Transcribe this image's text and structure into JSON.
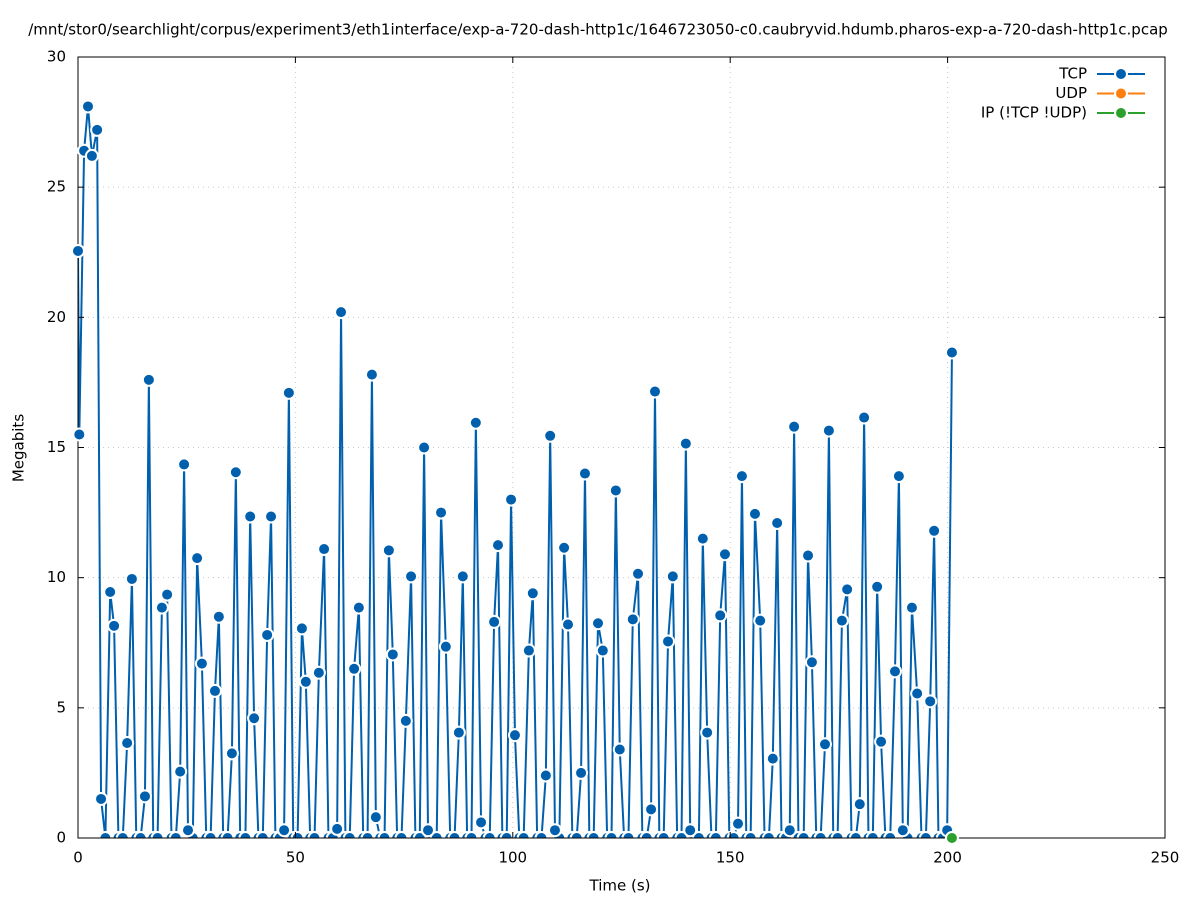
{
  "chart_data": {
    "type": "line",
    "title": "/mnt/stor0/searchlight/corpus/experiment3/eth1interface/exp-a-720-dash-http1c/1646723050-c0.caubryvid.hdumb.pharos-exp-a-720-dash-http1c.pcap",
    "x_label": "Time (s)",
    "y_label": "Megabits",
    "xlim": [
      0,
      250
    ],
    "xticks": [
      0,
      50,
      100,
      150,
      200,
      250
    ],
    "ylim": [
      0,
      30
    ],
    "yticks": [
      0,
      5,
      10,
      15,
      20,
      25,
      30
    ],
    "grid": true,
    "legend": "top-right",
    "series": [
      {
        "name": "TCP",
        "color": "#0060ad",
        "x": [
          0,
          0.3,
          1.4,
          2.3,
          3.2,
          4.4,
          5.3,
          6.3,
          7.4,
          8.3,
          9.3,
          10.3,
          11.3,
          12.4,
          13.4,
          14.4,
          15.4,
          16.3,
          17.3,
          18.3,
          19.3,
          20.5,
          21.5,
          22.5,
          23.5,
          24.4,
          25.3,
          26.4,
          27.4,
          28.5,
          29.5,
          30.5,
          31.5,
          32.4,
          33.4,
          34.4,
          35.4,
          36.3,
          37.3,
          38.5,
          39.6,
          40.5,
          41.5,
          42.5,
          43.5,
          44.4,
          45.4,
          46.4,
          47.4,
          48.5,
          49.5,
          50.5,
          51.5,
          52.4,
          53.4,
          54.4,
          55.4,
          56.6,
          57.6,
          58.6,
          59.6,
          60.5,
          61.5,
          62.5,
          63.5,
          64.6,
          65.6,
          66.6,
          67.6,
          68.5,
          69.5,
          70.5,
          71.5,
          72.4,
          73.4,
          74.4,
          75.4,
          76.6,
          77.6,
          78.6,
          79.6,
          80.5,
          81.5,
          82.5,
          83.5,
          84.6,
          85.6,
          86.6,
          87.6,
          88.5,
          89.5,
          90.5,
          91.5,
          92.7,
          93.7,
          94.7,
          95.7,
          96.6,
          97.6,
          98.6,
          99.6,
          100.5,
          101.5,
          102.5,
          103.7,
          104.6,
          105.6,
          106.6,
          107.6,
          108.6,
          109.7,
          110.7,
          111.8,
          112.7,
          113.7,
          114.7,
          115.7,
          116.6,
          117.6,
          118.6,
          119.6,
          120.7,
          121.7,
          122.7,
          123.7,
          124.6,
          125.6,
          126.6,
          127.6,
          128.8,
          129.8,
          130.8,
          131.8,
          132.7,
          133.7,
          134.7,
          135.7,
          136.8,
          137.8,
          138.8,
          139.8,
          140.8,
          141.8,
          142.8,
          143.7,
          144.7,
          145.7,
          146.7,
          147.7,
          148.8,
          149.8,
          150.8,
          151.8,
          152.7,
          153.7,
          154.7,
          155.7,
          156.9,
          157.9,
          158.9,
          159.8,
          160.8,
          161.8,
          162.8,
          163.7,
          164.7,
          165.7,
          166.9,
          167.9,
          168.8,
          169.8,
          170.8,
          171.8,
          172.7,
          173.7,
          174.7,
          175.7,
          176.9,
          177.9,
          178.9,
          179.8,
          180.8,
          181.8,
          182.8,
          183.8,
          184.7,
          185.7,
          186.8,
          187.9,
          188.8,
          189.7,
          190.8,
          191.8,
          193.0,
          194.0,
          195.0,
          196.0,
          196.9,
          197.9,
          198.9,
          199.9,
          201.0
        ],
        "values": [
          22.55,
          15.5,
          26.4,
          28.1,
          26.2,
          27.2,
          1.5,
          0,
          9.45,
          8.15,
          0,
          0,
          3.65,
          9.95,
          0,
          0,
          1.6,
          17.6,
          0,
          0,
          8.85,
          9.35,
          0,
          0,
          2.55,
          14.35,
          0.3,
          0,
          10.75,
          6.7,
          0,
          0,
          5.65,
          8.5,
          0,
          0,
          3.25,
          14.05,
          0,
          0,
          12.35,
          4.6,
          0,
          0,
          7.8,
          12.35,
          0,
          0,
          0.3,
          17.1,
          0,
          0,
          8.05,
          6.0,
          0,
          0,
          6.35,
          11.1,
          0,
          0,
          0.35,
          20.2,
          0,
          0,
          6.5,
          8.85,
          0,
          0,
          17.8,
          0.8,
          0,
          0,
          11.05,
          7.05,
          0,
          0,
          4.5,
          10.05,
          0,
          0,
          15.0,
          0.3,
          0,
          0,
          12.5,
          7.35,
          0,
          0,
          4.05,
          10.05,
          0,
          0,
          15.95,
          0.6,
          0,
          0,
          8.3,
          11.25,
          0,
          0,
          13.0,
          3.95,
          0,
          0,
          7.2,
          9.4,
          0,
          0,
          2.4,
          15.45,
          0.3,
          0,
          11.15,
          8.2,
          0,
          0,
          2.5,
          14.0,
          0,
          0,
          8.25,
          7.2,
          0,
          0,
          13.35,
          3.4,
          0,
          0,
          8.4,
          10.15,
          0,
          0,
          1.1,
          17.15,
          0,
          0,
          7.55,
          10.05,
          0,
          0,
          15.15,
          0.3,
          0,
          0,
          11.5,
          4.05,
          0,
          0,
          8.55,
          10.9,
          0,
          0,
          0.55,
          13.9,
          0,
          0,
          12.45,
          8.35,
          0,
          0,
          3.05,
          12.1,
          0,
          0,
          0.3,
          15.8,
          0,
          0,
          10.85,
          6.75,
          0,
          0,
          3.6,
          15.65,
          0,
          0,
          8.35,
          9.55,
          0,
          0,
          1.3,
          16.15,
          0,
          0,
          9.65,
          3.7,
          0,
          0,
          6.4,
          13.9,
          0.3,
          0,
          8.85,
          5.55,
          0,
          0,
          5.25,
          11.8,
          0,
          0,
          0.3,
          18.65
        ]
      },
      {
        "name": "UDP",
        "color": "#ff7f0e",
        "x": [],
        "values": []
      },
      {
        "name": "IP (!TCP  !UDP)",
        "color": "#2ca02c",
        "x": [
          201.0
        ],
        "values": [
          0
        ]
      }
    ]
  }
}
